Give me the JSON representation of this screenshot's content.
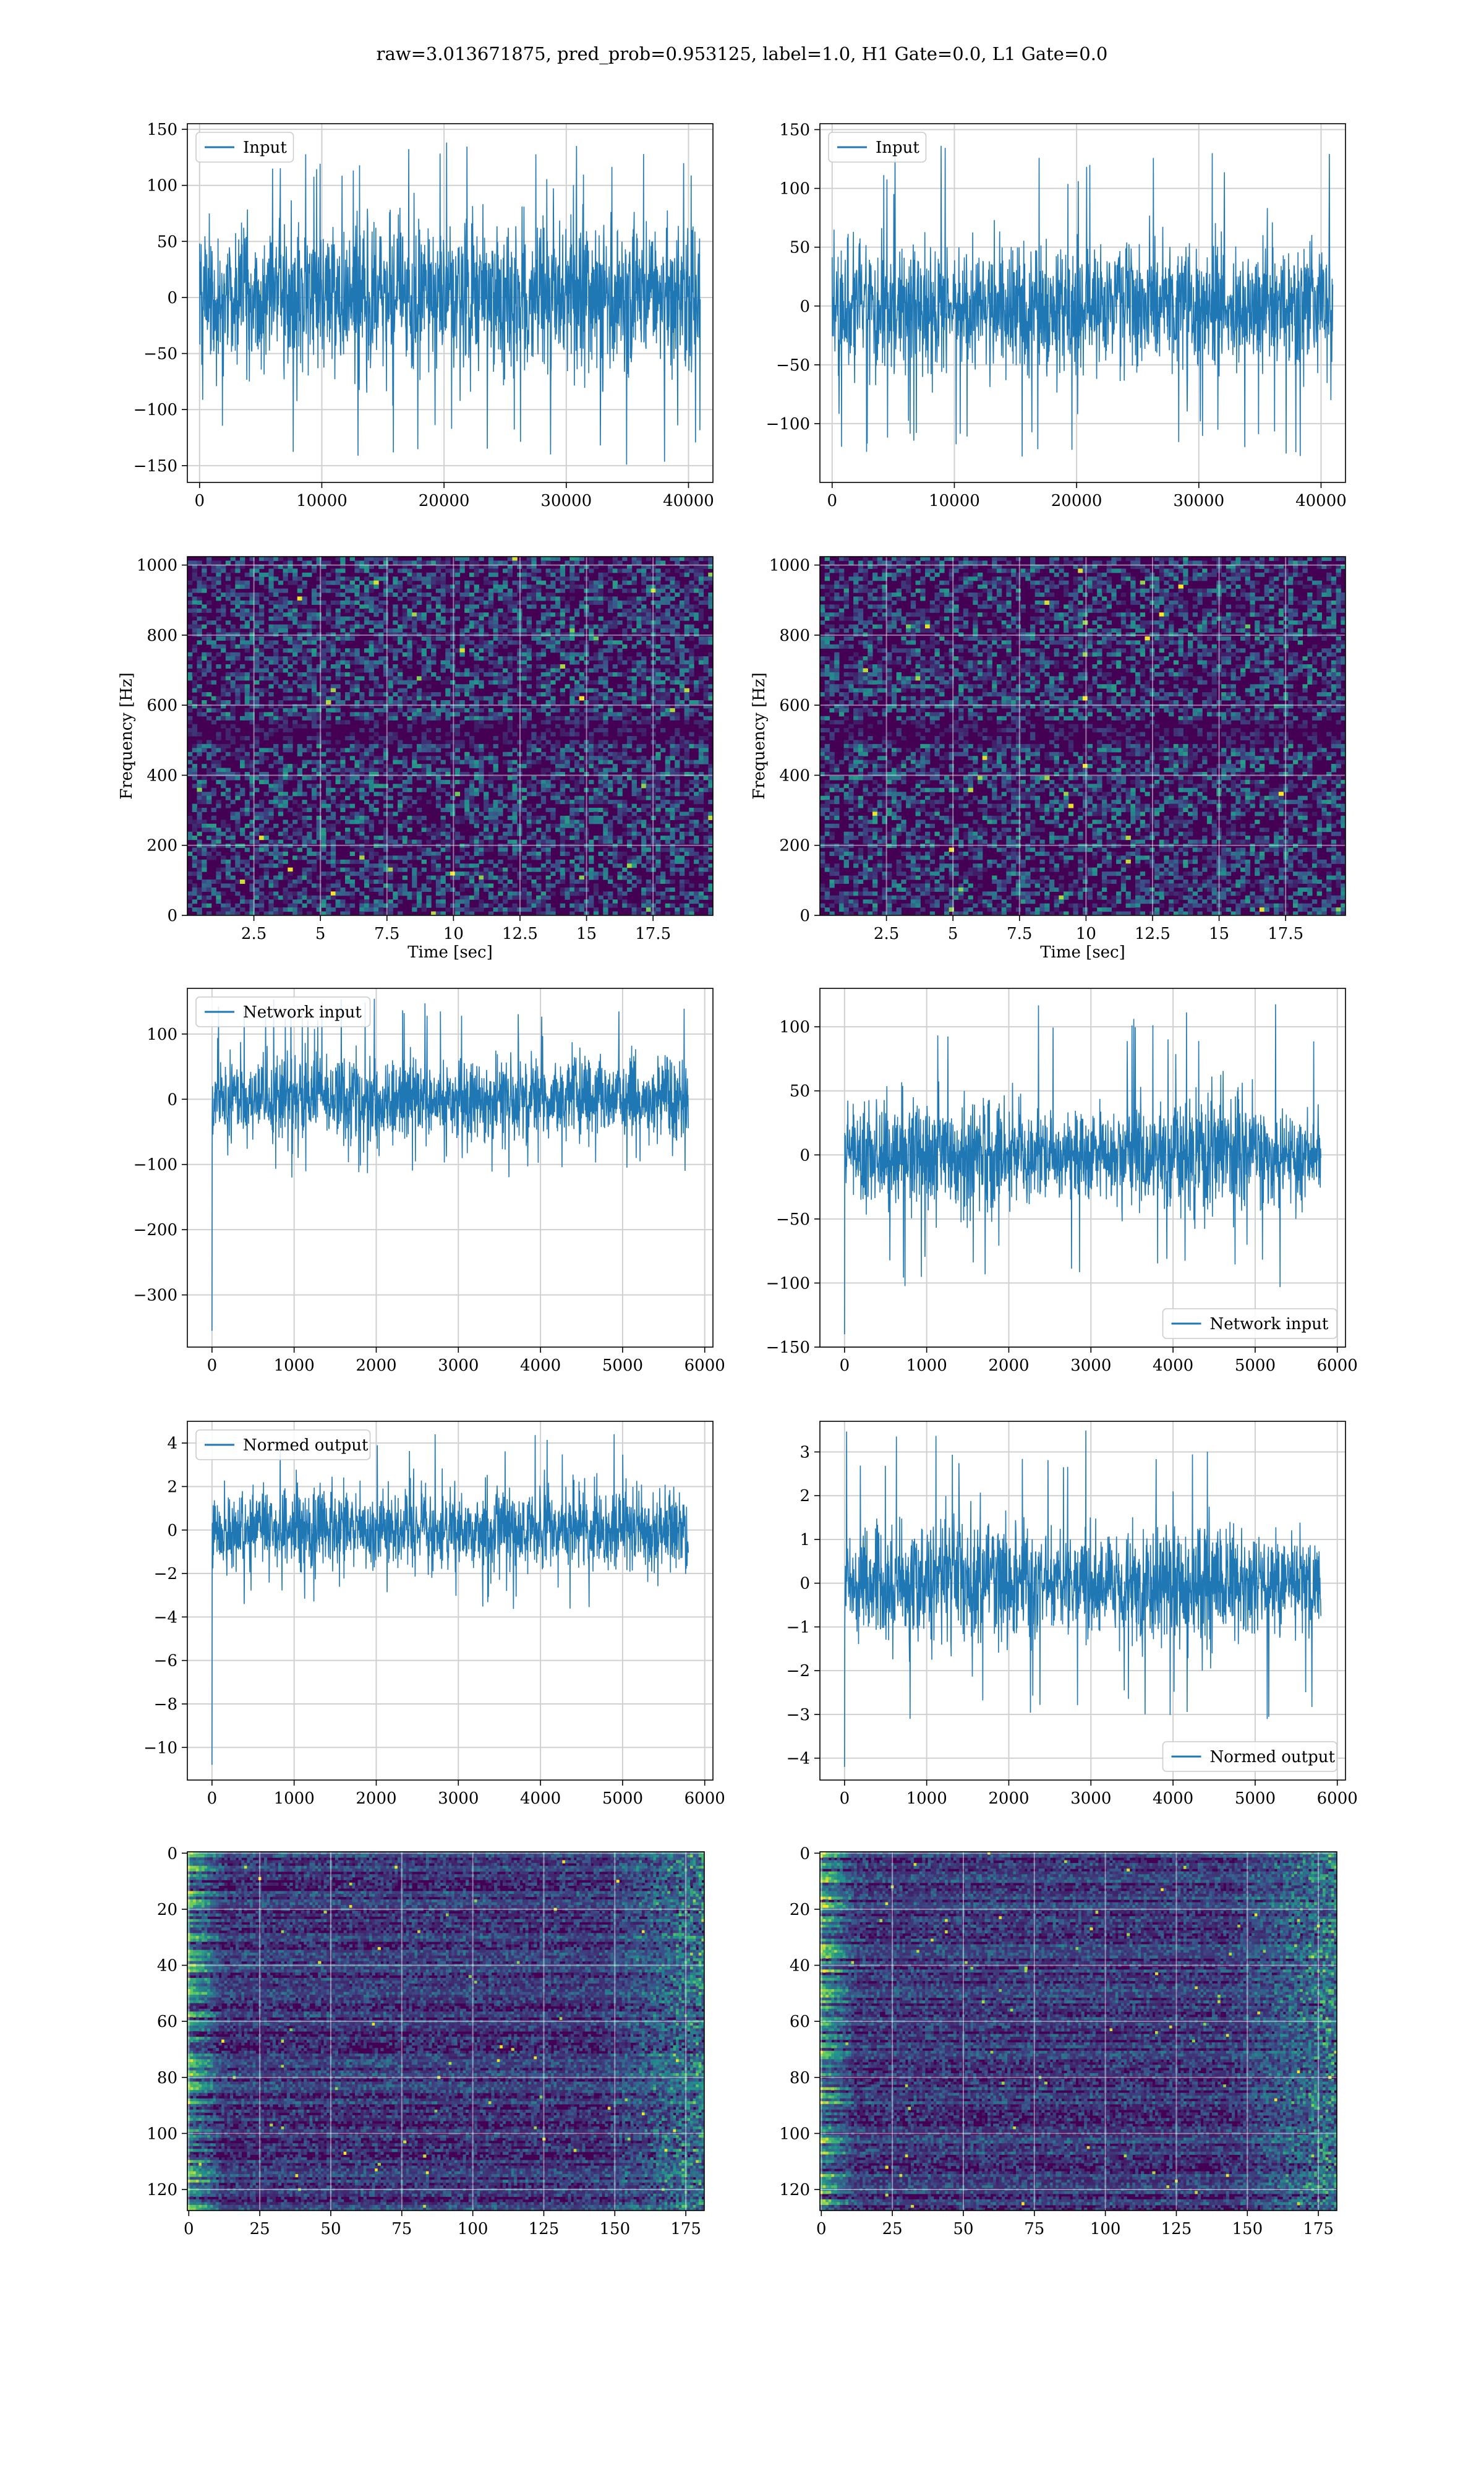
{
  "figure": {
    "suptitle": "raw=3.013671875, pred_prob=0.953125, label=1.0, H1 Gate=0.0, L1 Gate=0.0"
  },
  "colors": {
    "line": "#1f77b4",
    "grid": "#d0d0d0",
    "viridis_low": "#440154",
    "viridis_mid": "#21918c",
    "viridis_high": "#fde725"
  },
  "chart_data": [
    {
      "id": "input-h1",
      "type": "line",
      "legend": "Input",
      "legend_loc": "upper left",
      "xlim": [
        -1000,
        42000
      ],
      "ylim": [
        -165,
        155
      ],
      "xticks": [
        0,
        10000,
        20000,
        30000,
        40000
      ],
      "yticks": [
        -150,
        -100,
        -50,
        0,
        50,
        100,
        150
      ],
      "x_range": [
        0,
        40960
      ],
      "approx_band": [
        -75,
        75
      ],
      "approx_peak": [
        -150,
        140
      ],
      "grid": true
    },
    {
      "id": "input-l1",
      "type": "line",
      "legend": "Input",
      "legend_loc": "upper left",
      "xlim": [
        -1000,
        42000
      ],
      "ylim": [
        -150,
        155
      ],
      "xticks": [
        0,
        10000,
        20000,
        30000,
        40000
      ],
      "yticks": [
        -100,
        -50,
        0,
        50,
        100,
        150
      ],
      "x_range": [
        0,
        40960
      ],
      "approx_band": [
        -60,
        60
      ],
      "approx_peak": [
        -130,
        140
      ],
      "grid": true
    },
    {
      "id": "spectrogram-h1",
      "type": "heatmap",
      "colormap": "viridis",
      "xlim": [
        0,
        19.75
      ],
      "ylim": [
        0,
        1024
      ],
      "xticks": [
        2.5,
        5.0,
        7.5,
        10.0,
        12.5,
        15.0,
        17.5
      ],
      "yticks": [
        0,
        200,
        400,
        600,
        800,
        1000
      ],
      "xlabel": "Time [sec]",
      "ylabel": "Frequency [Hz]",
      "grid": true
    },
    {
      "id": "spectrogram-l1",
      "type": "heatmap",
      "colormap": "viridis",
      "xlim": [
        0,
        19.75
      ],
      "ylim": [
        0,
        1024
      ],
      "xticks": [
        2.5,
        5.0,
        7.5,
        10.0,
        12.5,
        15.0,
        17.5
      ],
      "yticks": [
        0,
        200,
        400,
        600,
        800,
        1000
      ],
      "xlabel": "Time [sec]",
      "ylabel": "Frequency [Hz]",
      "grid": true
    },
    {
      "id": "network-input-h1",
      "type": "line",
      "legend": "Network input",
      "legend_loc": "upper left",
      "xlim": [
        -300,
        6100
      ],
      "ylim": [
        -380,
        170
      ],
      "xticks": [
        0,
        1000,
        2000,
        3000,
        4000,
        5000,
        6000
      ],
      "yticks": [
        -300,
        -200,
        -100,
        0,
        100
      ],
      "x_range": [
        0,
        5800
      ],
      "approx_band": [
        -70,
        70
      ],
      "approx_peak": [
        -120,
        155
      ],
      "start_spike": -355,
      "grid": true
    },
    {
      "id": "network-input-l1",
      "type": "line",
      "legend": "Network input",
      "legend_loc": "lower right",
      "xlim": [
        -300,
        6100
      ],
      "ylim": [
        -150,
        130
      ],
      "xticks": [
        0,
        1000,
        2000,
        3000,
        4000,
        5000,
        6000
      ],
      "yticks": [
        -150,
        -100,
        -50,
        0,
        50,
        100
      ],
      "x_range": [
        0,
        5800
      ],
      "approx_band": [
        -45,
        45
      ],
      "approx_peak": [
        -105,
        118
      ],
      "start_spike": -140,
      "grid": true
    },
    {
      "id": "normed-output-h1",
      "type": "line",
      "legend": "Normed output",
      "legend_loc": "upper left",
      "xlim": [
        -300,
        6100
      ],
      "ylim": [
        -11.5,
        5.0
      ],
      "xticks": [
        0,
        1000,
        2000,
        3000,
        4000,
        5000,
        6000
      ],
      "yticks": [
        -10,
        -8,
        -6,
        -4,
        -2,
        0,
        2,
        4
      ],
      "x_range": [
        0,
        5800
      ],
      "approx_band": [
        -2.0,
        2.0
      ],
      "approx_peak": [
        -3.7,
        4.6
      ],
      "start_spike": -10.8,
      "grid": true
    },
    {
      "id": "normed-output-l1",
      "type": "line",
      "legend": "Normed output",
      "legend_loc": "lower right",
      "xlim": [
        -300,
        6100
      ],
      "ylim": [
        -4.5,
        3.7
      ],
      "xticks": [
        0,
        1000,
        2000,
        3000,
        4000,
        5000,
        6000
      ],
      "yticks": [
        -4,
        -3,
        -2,
        -1,
        0,
        1,
        2,
        3
      ],
      "x_range": [
        0,
        5800
      ],
      "approx_band": [
        -1.4,
        1.4
      ],
      "approx_peak": [
        -3.2,
        3.5
      ],
      "start_spike": -4.2,
      "grid": true
    },
    {
      "id": "feature-map-h1",
      "type": "heatmap",
      "colormap": "viridis",
      "xlim": [
        -0.5,
        181.5
      ],
      "ylim": [
        127.5,
        -0.5
      ],
      "xticks": [
        0,
        25,
        50,
        75,
        100,
        125,
        150,
        175
      ],
      "yticks": [
        0,
        20,
        40,
        60,
        80,
        100,
        120
      ],
      "grid": true
    },
    {
      "id": "feature-map-l1",
      "type": "heatmap",
      "colormap": "viridis",
      "xlim": [
        -0.5,
        181.5
      ],
      "ylim": [
        127.5,
        -0.5
      ],
      "xticks": [
        0,
        25,
        50,
        75,
        100,
        125,
        150,
        175
      ],
      "yticks": [
        0,
        20,
        40,
        60,
        80,
        100,
        120
      ],
      "grid": true
    }
  ]
}
